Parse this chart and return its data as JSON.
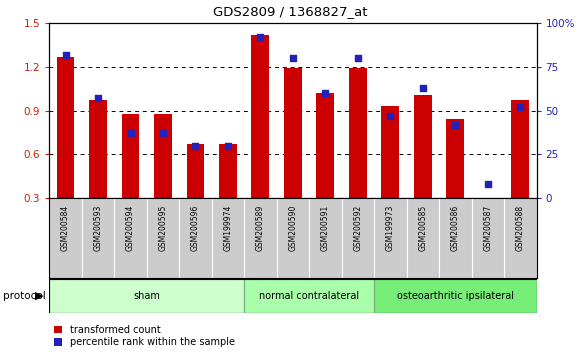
{
  "title": "GDS2809 / 1368827_at",
  "samples": [
    "GSM200584",
    "GSM200593",
    "GSM200594",
    "GSM200595",
    "GSM200596",
    "GSM199974",
    "GSM200589",
    "GSM200590",
    "GSM200591",
    "GSM200592",
    "GSM199973",
    "GSM200585",
    "GSM200586",
    "GSM200587",
    "GSM200588"
  ],
  "transformed_count": [
    1.27,
    0.97,
    0.88,
    0.88,
    0.67,
    0.67,
    1.42,
    1.19,
    1.02,
    1.19,
    0.93,
    1.01,
    0.84,
    0.3,
    0.97
  ],
  "percentile_rank": [
    82,
    57,
    37,
    37,
    30,
    30,
    92,
    80,
    60,
    80,
    47,
    63,
    42,
    8,
    52
  ],
  "groups": [
    {
      "label": "sham",
      "start": 0,
      "end": 5
    },
    {
      "label": "normal contralateral",
      "start": 6,
      "end": 9
    },
    {
      "label": "osteoarthritic ipsilateral",
      "start": 10,
      "end": 14
    }
  ],
  "group_colors": [
    "#ccffcc",
    "#aaffaa",
    "#77ee77"
  ],
  "bar_color": "#cc0000",
  "dot_color": "#2222bb",
  "ylim_left": [
    0.3,
    1.5
  ],
  "ylim_right": [
    0,
    100
  ],
  "yticks_left": [
    0.3,
    0.6,
    0.9,
    1.2,
    1.5
  ],
  "yticks_right": [
    0,
    25,
    50,
    75,
    100
  ],
  "background_color": "#ffffff",
  "tick_color_left": "#cc2200",
  "tick_color_right": "#2222bb",
  "legend_items": [
    "transformed count",
    "percentile rank within the sample"
  ],
  "protocol_label": "protocol",
  "bar_width": 0.55
}
